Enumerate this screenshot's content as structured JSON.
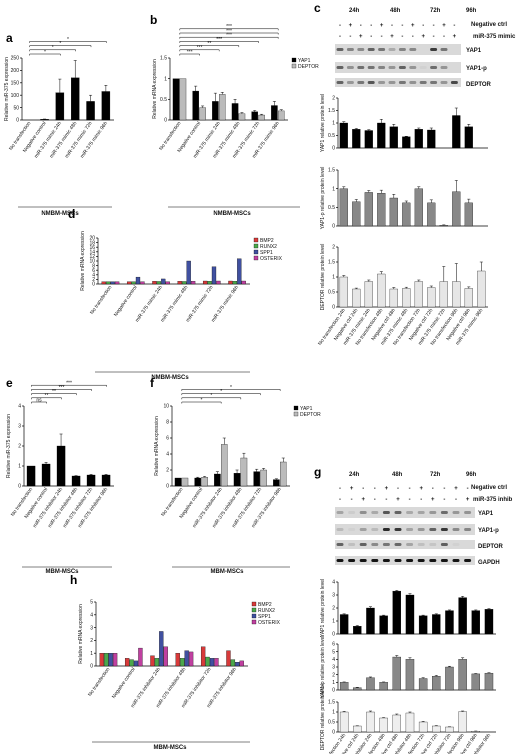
{
  "panels": {
    "a": {
      "letter": "a",
      "ylabel": "Relative miR-375 expression",
      "group": "NMBM-MSCs"
    },
    "b": {
      "letter": "b",
      "ylabel": "Relative mRNA expression",
      "group": "NMBM-MSCs"
    },
    "c": {
      "letter": "c",
      "times": [
        "24h",
        "48h",
        "72h",
        "96h"
      ],
      "row1": "Negative ctrl",
      "row2": "miR-375 mimic",
      "blots": [
        "YAP1",
        "YAP1-p",
        "DEPTOR"
      ],
      "ylabels": [
        "YAP1 relative protein level",
        "YAP1-p relative protein level",
        "DEPTOR relative protein level"
      ]
    },
    "d": {
      "letter": "d",
      "ylabel": "Relative mRNA expression",
      "group": "NMBM-MSCs"
    },
    "e": {
      "letter": "e",
      "ylabel": "Relative miR-375 expression",
      "group": "MBM-MSCs"
    },
    "f": {
      "letter": "f",
      "ylabel": "Relative mRNA expression",
      "group": "MBM-MSCs"
    },
    "g": {
      "letter": "g",
      "times": [
        "24h",
        "48h",
        "72h",
        "96h"
      ],
      "row1": "Negative ctrl",
      "row2": "miR-375 inhib",
      "blots": [
        "YAP1",
        "YAP1-p",
        "DEPTOR",
        "GAPDH"
      ],
      "ylabels": [
        "YAP1 relative protein level",
        "YAP1-p relative protein level",
        "DEPTOR relative protein level"
      ]
    },
    "h": {
      "letter": "h",
      "ylabel": "Relative mRNA expression",
      "group": "MBM-MSCs"
    }
  },
  "sig": {
    "s1": "*",
    "s2": "**",
    "s3": "***",
    "s4": "****",
    "ns": "ns"
  },
  "chart_data": [
    {
      "id": "a",
      "type": "bar",
      "categories": [
        "No transfection",
        "Negative control",
        "miR-375 mimic 24h",
        "miR-375 mimic 48h",
        "miR-375 mimic 72h",
        "miR-375 mimic 96h"
      ],
      "values": [
        0,
        3,
        110,
        170,
        75,
        115
      ],
      "errors": [
        0,
        1,
        55,
        70,
        25,
        25
      ],
      "ylim": [
        0,
        250
      ],
      "yticks": [
        0,
        50,
        100,
        150,
        200,
        250
      ],
      "ylabel": "Relative miR-375 expression",
      "color": "#000000",
      "brackets": [
        [
          0,
          2,
          "*"
        ],
        [
          0,
          3,
          "*"
        ],
        [
          0,
          4,
          "*"
        ],
        [
          0,
          5,
          "*"
        ]
      ]
    },
    {
      "id": "b",
      "type": "bar",
      "categories": [
        "No transfection",
        "Negative control",
        "miR-375 mimic 24h",
        "miR-375 mimic 48h",
        "miR-375 mimic 72h",
        "miR-375 mimic 96h"
      ],
      "series": [
        {
          "name": "YAP1",
          "values": [
            1.0,
            0.7,
            0.45,
            0.4,
            0.2,
            0.35
          ],
          "errors": [
            0,
            0.12,
            0.2,
            0.1,
            0.03,
            0.1
          ],
          "color": "#000000"
        },
        {
          "name": "DEPTOR",
          "values": [
            1.0,
            0.3,
            0.62,
            0.15,
            0.12,
            0.22
          ],
          "errors": [
            0,
            0.04,
            0.05,
            0.03,
            0.02,
            0.03
          ],
          "color": "#bbbbbb"
        }
      ],
      "ylim": [
        0,
        1.5
      ],
      "yticks": [
        0,
        0.5,
        1.0,
        1.5
      ],
      "ylabel": "Relative mRNA expression",
      "brackets": [
        [
          0,
          1,
          "***"
        ],
        [
          0,
          2,
          "***"
        ],
        [
          0,
          3,
          "**"
        ],
        [
          0,
          4,
          "***"
        ],
        [
          0,
          5,
          "***"
        ],
        [
          0,
          5,
          "***"
        ],
        [
          0,
          5,
          "***"
        ]
      ]
    },
    {
      "id": "c1",
      "type": "bar",
      "categories": [
        "No transfection 24h",
        "Negative ctrl 24h",
        "miR-375 mimic 24h",
        "No transfection 48h",
        "Negative ctrl 48h",
        "miR-375 mimic 48h",
        "No transfection 72h",
        "Negative ctrl 72h",
        "miR-375 mimic 72h",
        "No transfection 96h",
        "Negative ctrl 96h",
        "miR-375 mimic 96h"
      ],
      "values": [
        1.0,
        0.75,
        0.7,
        1.0,
        0.85,
        0.45,
        0.75,
        0.72,
        null,
        1.3,
        0.85,
        null
      ],
      "errors": [
        0.05,
        0.03,
        0.03,
        0.15,
        0.1,
        0.02,
        0.05,
        0.08,
        0,
        0.3,
        0.1,
        0
      ],
      "ylim": [
        0,
        2.0
      ],
      "yticks": [
        0,
        0.5,
        1.0,
        1.5,
        2.0
      ],
      "ylabel": "YAP1 relative protein level",
      "color": "#000000"
    },
    {
      "id": "c2",
      "type": "bar",
      "categories": [
        "No transfection 24h",
        "Negative ctrl 24h",
        "miR-375 mimic 24h",
        "No transfection 48h",
        "Negative ctrl 48h",
        "miR-375 mimic 48h",
        "No transfection 72h",
        "Negative ctrl 72h",
        "miR-375 mimic 72h",
        "No transfection 96h",
        "Negative ctrl 96h",
        "miR-375 mimic 96h"
      ],
      "values": [
        1.0,
        0.65,
        0.9,
        0.88,
        0.75,
        0.62,
        1.0,
        0.62,
        0.02,
        0.92,
        0.62,
        null
      ],
      "errors": [
        0.05,
        0.06,
        0.05,
        0.08,
        0.1,
        0.05,
        0.05,
        0.08,
        0.01,
        0.3,
        0.1,
        0
      ],
      "ylim": [
        0,
        1.5
      ],
      "yticks": [
        0,
        0.5,
        1.0,
        1.5
      ],
      "ylabel": "YAP1-p relative protein level",
      "color": "#888888"
    },
    {
      "id": "c3",
      "type": "bar",
      "categories": [
        "No transfection 24h",
        "Negative ctrl 24h",
        "miR-375 mimic 24h",
        "No transfection 48h",
        "Negative ctrl 48h",
        "miR-375 mimic 48h",
        "No transfection 72h",
        "Negative ctrl 72h",
        "miR-375 mimic 72h",
        "No transfection 96h",
        "Negative ctrl 96h",
        "miR-375 mimic 96h"
      ],
      "values": [
        1.0,
        0.6,
        0.85,
        1.1,
        0.6,
        0.62,
        0.85,
        0.65,
        0.85,
        0.85,
        0.62,
        1.2
      ],
      "errors": [
        0.05,
        0.03,
        0.05,
        0.08,
        0.05,
        0.04,
        0.05,
        0.05,
        0.5,
        0.6,
        0.05,
        0.3
      ],
      "ylim": [
        0,
        2.0
      ],
      "yticks": [
        0,
        0.5,
        1.0,
        1.5,
        2.0
      ],
      "ylabel": "DEPTOR relative protein level",
      "color": "#e6e6e6"
    },
    {
      "id": "d",
      "type": "bar",
      "categories": [
        "No transfection",
        "Negative control",
        "miR-375 mimic 24h",
        "miR-375 mimic 48h",
        "miR-375 mimic 72h",
        "miR-375 mimic 96h"
      ],
      "series": [
        {
          "name": "BMP2",
          "values": [
            1,
            1,
            1.2,
            1.2,
            1.3,
            1.3
          ],
          "color": "#d83a3a"
        },
        {
          "name": "RUNX2",
          "values": [
            1,
            1,
            1.1,
            1.1,
            1.2,
            1.2
          ],
          "color": "#4aa84a"
        },
        {
          "name": "SPP1",
          "values": [
            1,
            3,
            2.2,
            10,
            7.5,
            11
          ],
          "color": "#4050a0"
        },
        {
          "name": "OSTERIX",
          "values": [
            1,
            1,
            1,
            1.2,
            1.3,
            1.3
          ],
          "color": "#c040a0"
        }
      ],
      "ylim": [
        0,
        20
      ],
      "yticks": [
        0,
        2,
        4,
        6,
        8,
        10,
        12,
        14,
        16,
        18,
        20
      ],
      "ylabel": "Relative mRNA expression"
    },
    {
      "id": "e",
      "type": "bar",
      "categories": [
        "No transfection",
        "Negative control",
        "miR-375 inhibitor 24h",
        "miR-375 inhibitor 48h",
        "miR-375 inhibitor 72h",
        "miR-375 inhibitor 96h"
      ],
      "values": [
        1.0,
        1.1,
        2.0,
        0.5,
        0.55,
        0.55
      ],
      "errors": [
        0,
        0.08,
        0.6,
        0.02,
        0.03,
        0.03
      ],
      "ylim": [
        0,
        4
      ],
      "yticks": [
        0,
        1,
        2,
        3,
        4
      ],
      "ylabel": "Relative miR-375 expression",
      "color": "#000000",
      "brackets": [
        [
          0,
          1,
          "ns"
        ],
        [
          0,
          2,
          "**"
        ],
        [
          0,
          3,
          "**"
        ],
        [
          0,
          4,
          "***"
        ],
        [
          0,
          5,
          "***"
        ]
      ]
    },
    {
      "id": "f",
      "type": "bar",
      "categories": [
        "No transfection",
        "Negative control",
        "miR-375 inhibitor 24h",
        "miR-375 inhibitor 48h",
        "miR-375 inhibitor 72h",
        "miR-375 inhibitor 96h"
      ],
      "series": [
        {
          "name": "YAP1",
          "values": [
            1.0,
            1.0,
            1.5,
            1.6,
            1.8,
            0.8
          ],
          "errors": [
            0,
            0.1,
            0.3,
            0.4,
            0.3,
            0.1
          ],
          "color": "#000000"
        },
        {
          "name": "DEPTOR",
          "values": [
            1.0,
            1.1,
            5.2,
            3.5,
            2.0,
            3.0
          ],
          "errors": [
            0,
            0.1,
            0.8,
            0.6,
            0.2,
            0.5
          ],
          "color": "#bbbbbb"
        }
      ],
      "ylim": [
        0,
        10
      ],
      "yticks": [
        0,
        2,
        4,
        6,
        8,
        10
      ],
      "ylabel": "Relative mRNA expression",
      "brackets": [
        [
          0,
          2,
          "*"
        ],
        [
          0,
          3,
          "*"
        ],
        [
          0,
          4,
          "*"
        ],
        [
          0,
          5,
          "*"
        ]
      ]
    },
    {
      "id": "g1",
      "type": "bar",
      "categories": [
        "No transfection 24h",
        "Negative ctrl 24h",
        "miR-375 inhibitor 24h",
        "No transfection 48h",
        "Negative ctrl 48h",
        "miR-375 inhibitor 48h",
        "No transfection 72h",
        "Negative ctrl 72h",
        "miR-375 inhibitor 72h",
        "No transfection 96h",
        "Negative ctrl 96h",
        "miR-375 inhibitor 96h"
      ],
      "values": [
        1.5,
        0.6,
        2.0,
        1.4,
        3.3,
        3.0,
        1.4,
        1.5,
        1.8,
        2.8,
        1.8,
        1.9
      ],
      "errors": [
        0.05,
        0.05,
        0.1,
        0.05,
        0.05,
        0.1,
        0.05,
        0.05,
        0.05,
        0.1,
        0.05,
        0.05
      ],
      "ylim": [
        0,
        4
      ],
      "yticks": [
        0,
        1,
        2,
        3,
        4
      ],
      "ylabel": "YAP1 relative protein level",
      "color": "#000000"
    },
    {
      "id": "g2",
      "type": "bar",
      "categories": [
        "No transfection 24h",
        "Negative ctrl 24h",
        "miR-375 inhibitor 24h",
        "No transfection 48h",
        "Negative ctrl 48h",
        "miR-375 inhibitor 48h",
        "No transfection 72h",
        "Negative ctrl 72h",
        "miR-375 inhibitor 72h",
        "No transfection 96h",
        "Negative ctrl 96h",
        "miR-375 inhibitor 96h"
      ],
      "values": [
        1.0,
        0.3,
        1.6,
        1.0,
        4.3,
        4.0,
        1.5,
        1.8,
        3.0,
        4.0,
        2.1,
        2.2
      ],
      "errors": [
        0.05,
        0.05,
        0.1,
        0.05,
        0.2,
        0.2,
        0.1,
        0.1,
        0.1,
        0.2,
        0.05,
        0.05
      ],
      "ylim": [
        0,
        6
      ],
      "yticks": [
        0,
        1,
        2,
        3,
        4,
        5,
        6
      ],
      "ylabel": "YAP1-p relative protein level",
      "color": "#888888"
    },
    {
      "id": "g3",
      "type": "bar",
      "categories": [
        "No transfection 24h",
        "Negative ctrl 24h",
        "miR-375 inhibitor 24h",
        "No transfection 48h",
        "Negative ctrl 48h",
        "miR-375 inhibitor 48h",
        "No transfection 72h",
        "Negative ctrl 72h",
        "miR-375 inhibitor 72h",
        "No transfection 96h",
        "Negative ctrl 96h",
        "miR-375 inhibitor 96h"
      ],
      "values": [
        1.0,
        0.3,
        1.0,
        0.7,
        0.85,
        0.95,
        0.5,
        0.3,
        0.25,
        1.02,
        0.04,
        null
      ],
      "errors": [
        0.03,
        0.01,
        0.05,
        0.02,
        0.05,
        0.05,
        0.03,
        0.02,
        0.01,
        0.03,
        0.01,
        0
      ],
      "ylim": [
        0,
        1.5
      ],
      "yticks": [
        0,
        0.5,
        1.0,
        1.5
      ],
      "ylabel": "DEPTOR relative protein level",
      "color": "#eeeeee"
    },
    {
      "id": "h",
      "type": "bar",
      "categories": [
        "No transfection",
        "Negative control",
        "miR-375 inhibitor 24h",
        "miR-375 inhibitor 48h",
        "miR-375 inhibitor 72h",
        "miR-375 inhibitor 96h"
      ],
      "series": [
        {
          "name": "BMP2",
          "values": [
            1,
            0.6,
            0.8,
            1.0,
            1.5,
            1.2
          ],
          "color": "#d83a3a"
        },
        {
          "name": "RUNX2",
          "values": [
            1,
            0.5,
            0.6,
            0.6,
            0.7,
            0.5
          ],
          "color": "#4aa84a"
        },
        {
          "name": "SPP1",
          "values": [
            1,
            0.4,
            2.7,
            1.2,
            0.6,
            0.3
          ],
          "color": "#4050a0"
        },
        {
          "name": "OSTERIX",
          "values": [
            1,
            1.4,
            1.5,
            1.1,
            0.6,
            0.4
          ],
          "color": "#c040a0"
        }
      ],
      "ylim": [
        0,
        5
      ],
      "yticks": [
        0,
        1,
        2,
        3,
        4,
        5
      ],
      "ylabel": "Relative mRNA expression"
    }
  ]
}
